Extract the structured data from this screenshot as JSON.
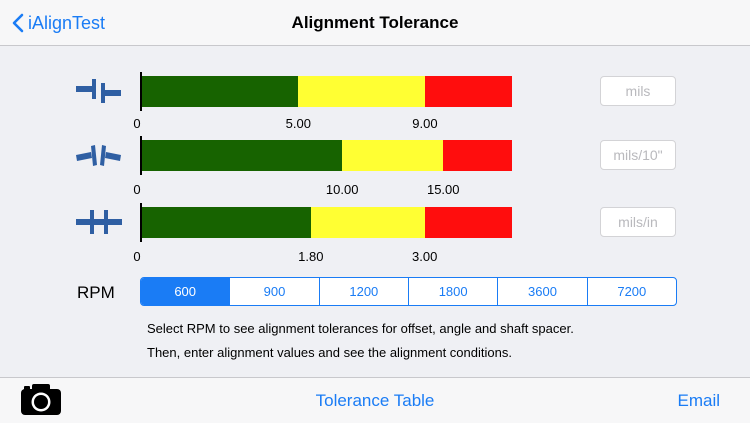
{
  "navbar": {
    "back_label": "iAlignTest",
    "title": "Alignment Tolerance"
  },
  "colors": {
    "accent": "#1a7cf5",
    "green": "#176300",
    "yellow": "#ffff33",
    "red": "#ff0d0d"
  },
  "rows": [
    {
      "icon": "offset-coupling-icon",
      "zero": "0",
      "threshold1": 5.0,
      "threshold2": 9.0,
      "max": 11.75,
      "t1_label": "5.00",
      "t2_label": "9.00",
      "placeholder": "mils"
    },
    {
      "icon": "angle-coupling-icon",
      "zero": "0",
      "threshold1": 10.0,
      "threshold2": 15.0,
      "max": 18.4,
      "t1_label": "10.00",
      "t2_label": "15.00",
      "placeholder": "mils/10\""
    },
    {
      "icon": "shaft-spacer-icon",
      "zero": "0",
      "threshold1": 1.8,
      "threshold2": 3.0,
      "max": 3.92,
      "t1_label": "1.80",
      "t2_label": "3.00",
      "placeholder": "mils/in"
    }
  ],
  "rpm": {
    "label": "RPM",
    "options": [
      "600",
      "900",
      "1200",
      "1800",
      "3600",
      "7200"
    ],
    "selected": "600"
  },
  "notes": [
    "Select RPM to see alignment tolerances for offset, angle and shaft spacer.",
    "Then, enter alignment values and see the alignment conditions."
  ],
  "toolbar": {
    "camera_icon": "camera-icon",
    "tolerance_label": "Tolerance Table",
    "email_label": "Email"
  }
}
